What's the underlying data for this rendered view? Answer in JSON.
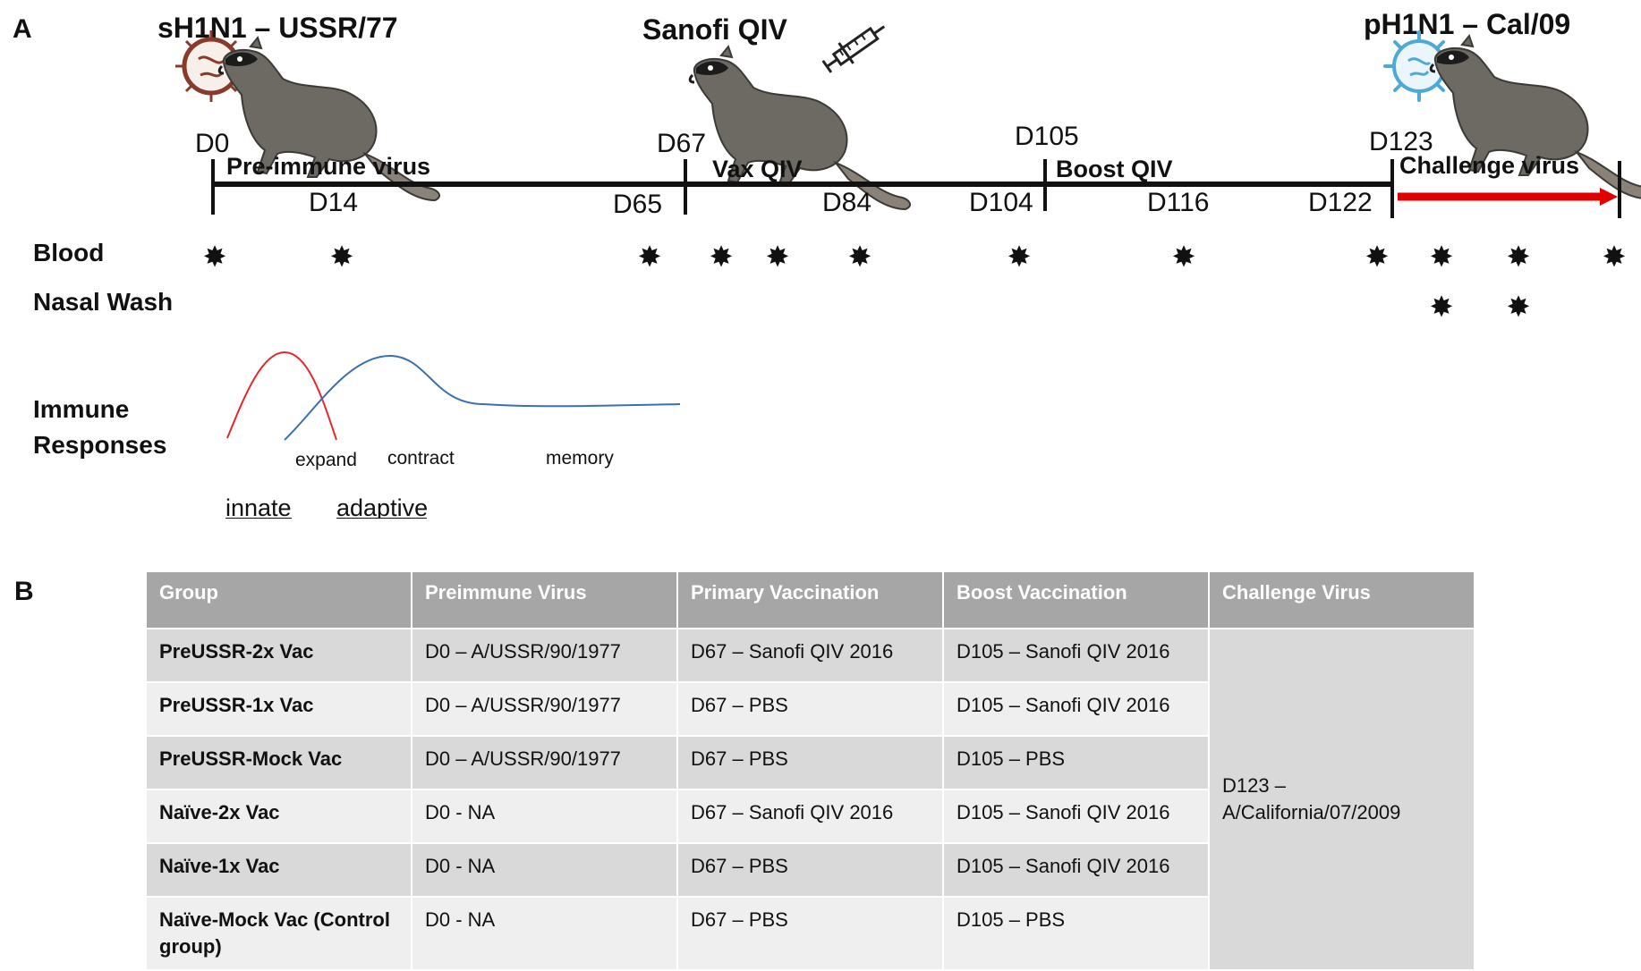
{
  "panel_a": {
    "label": "A",
    "events": {
      "preimmune": "sH1N1 – USSR/77",
      "vaccine": "Sanofi QIV",
      "challenge": "pH1N1 – Cal/09"
    },
    "days_above": [
      "D0",
      "D67",
      "D105",
      "D123"
    ],
    "phases": [
      "Pre-immune virus",
      "Vax QIV",
      "Boost QIV",
      "Challenge virus"
    ],
    "days_below": [
      "D14",
      "D65",
      "D84",
      "D104",
      "D116",
      "D122"
    ],
    "row_labels": {
      "blood": "Blood",
      "nasal_wash": "Nasal Wash",
      "immune_line1": "Immune",
      "immune_line2": "Responses"
    },
    "star_glyph": "✸",
    "curve_labels": [
      "expand",
      "contract",
      "memory"
    ],
    "response_types": [
      "innate",
      "adaptive"
    ],
    "colors": {
      "innate": "#e8262b",
      "adaptive": "#3a6fb5",
      "challenge_arrow": "#e00000"
    },
    "icons": [
      "virus-icon-red",
      "ferret-icon",
      "syringe-icon",
      "virus-icon-blue"
    ]
  },
  "panel_b": {
    "label": "B",
    "headers": [
      "Group",
      "Preimmune Virus",
      "Primary Vaccination",
      "Boost Vaccination",
      "Challenge Virus"
    ],
    "rows": [
      [
        "PreUSSR-2x Vac",
        "D0 – A/USSR/90/1977",
        "D67 – Sanofi QIV 2016",
        "D105 – Sanofi QIV 2016"
      ],
      [
        "PreUSSR-1x Vac",
        "D0 – A/USSR/90/1977",
        "D67 – PBS",
        "D105 – Sanofi QIV 2016"
      ],
      [
        "PreUSSR-Mock Vac",
        "D0 – A/USSR/90/1977",
        "D67 – PBS",
        "D105 – PBS"
      ],
      [
        "Naïve-2x Vac",
        "D0 - NA",
        "D67 – Sanofi QIV 2016",
        "D105 – Sanofi QIV 2016"
      ],
      [
        "Naïve-1x Vac",
        "D0 - NA",
        "D67 – PBS",
        "D105 – Sanofi QIV 2016"
      ],
      [
        "Naïve-Mock Vac (Control group)",
        "D0 - NA",
        "D67 – PBS",
        "D105 – PBS"
      ]
    ],
    "challenge_line1": "D123 –",
    "challenge_line2": "A/California/07/2009"
  }
}
